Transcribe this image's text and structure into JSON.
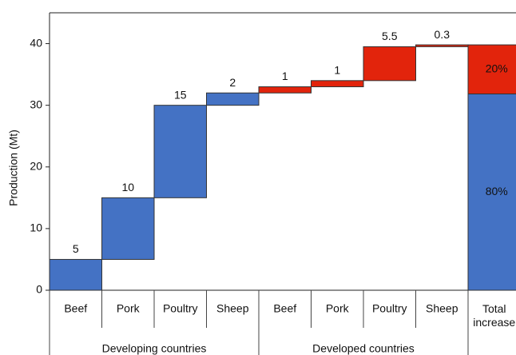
{
  "chart_data": {
    "type": "waterfall",
    "y_label": "Production (Mt)",
    "categories": [
      "Beef",
      "Pork",
      "Poultry",
      "Sheep",
      "Beef",
      "Pork",
      "Poultry",
      "Sheep"
    ],
    "series": [
      {
        "name": "Developing countries",
        "color": "#4472c4",
        "values": [
          5,
          10,
          15,
          2,
          null,
          null,
          null,
          null
        ]
      },
      {
        "name": "Developed countries",
        "color": "#e2240c",
        "values": [
          null,
          null,
          null,
          null,
          1,
          1,
          5.5,
          0.3
        ]
      }
    ],
    "total": {
      "category": "Total increase",
      "values": [
        80,
        20
      ],
      "value_labels": [
        "80%",
        "20%"
      ]
    },
    "ylim": [
      0,
      45
    ],
    "yticks": [
      0,
      10,
      20,
      30,
      40
    ]
  }
}
